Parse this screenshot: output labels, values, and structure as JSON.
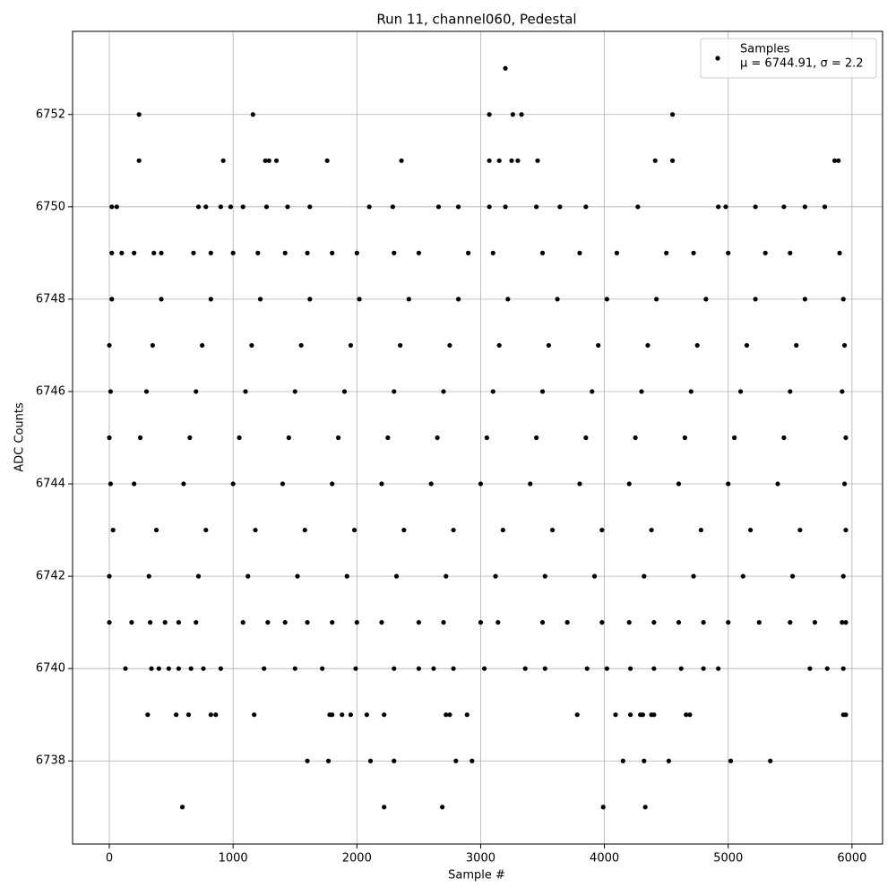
{
  "chart_data": {
    "type": "scatter",
    "title": "Run 11, channel060, Pedestal",
    "xlabel": "Sample #",
    "ylabel": "ADC Counts",
    "xlim": [
      -297,
      6247
    ],
    "ylim": [
      6736.2,
      6753.8
    ],
    "xticks": [
      0,
      1000,
      2000,
      3000,
      4000,
      5000,
      6000
    ],
    "yticks": [
      6738,
      6740,
      6742,
      6744,
      6746,
      6748,
      6750,
      6752
    ],
    "grid": true,
    "legend": "upper right",
    "legend_stats": "μ = 6744.91, σ = 2.2",
    "series": [
      {
        "name": "Samples",
        "color": "#000000",
        "x": [
          3200,
          240,
          1160,
          3070,
          3260,
          3330,
          4550,
          240,
          920,
          1260,
          1290,
          1350,
          1760,
          2360,
          3070,
          3150,
          3250,
          3300,
          3460,
          4410,
          4550,
          5860,
          5890,
          20,
          60,
          720,
          780,
          900,
          980,
          1080,
          1270,
          1440,
          1620,
          2100,
          2290,
          2660,
          2820,
          3070,
          3200,
          3450,
          3640,
          3850,
          4270,
          4920,
          4980,
          5220,
          5450,
          5620,
          5780,
          20,
          100,
          200,
          360,
          420,
          680,
          820,
          1000,
          1200,
          1420,
          1600,
          1800,
          2000,
          2300,
          2500,
          2900,
          3100,
          3500,
          3800,
          4100,
          4500,
          4720,
          5000,
          5300,
          5500,
          5900,
          20,
          420,
          820,
          1220,
          1620,
          2020,
          2420,
          2820,
          3220,
          3620,
          4020,
          4420,
          4820,
          5220,
          5620,
          5930,
          0,
          350,
          750,
          1150,
          1550,
          1950,
          2350,
          2750,
          3150,
          3550,
          3950,
          4350,
          4750,
          5150,
          5550,
          5940,
          10,
          300,
          700,
          1100,
          1500,
          1900,
          2300,
          2700,
          3100,
          3500,
          3900,
          4300,
          4700,
          5100,
          5500,
          5920,
          0,
          250,
          650,
          1050,
          1450,
          1850,
          2250,
          2650,
          3050,
          3450,
          3850,
          4250,
          4650,
          5050,
          5450,
          5950,
          10,
          200,
          600,
          1000,
          1400,
          1800,
          2200,
          2600,
          3000,
          3400,
          3800,
          4200,
          4600,
          5000,
          5400,
          5940,
          30,
          380,
          780,
          1180,
          1580,
          1980,
          2380,
          2780,
          3180,
          3580,
          3980,
          4380,
          4780,
          5180,
          5580,
          5950,
          0,
          320,
          720,
          1120,
          1520,
          1920,
          2320,
          2720,
          3120,
          3520,
          3920,
          4320,
          4720,
          5120,
          5520,
          5930,
          0,
          180,
          330,
          450,
          560,
          700,
          1080,
          1280,
          1420,
          1600,
          1800,
          2000,
          2200,
          2500,
          2700,
          3000,
          3140,
          3500,
          3700,
          3980,
          4200,
          4400,
          4600,
          4800,
          5000,
          5250,
          5500,
          5700,
          5920,
          5950,
          130,
          340,
          400,
          480,
          560,
          660,
          760,
          900,
          1250,
          1500,
          1720,
          1990,
          2300,
          2500,
          2620,
          2780,
          3030,
          3360,
          3520,
          3860,
          4020,
          4210,
          4400,
          4620,
          4800,
          4920,
          5660,
          5800,
          5930,
          310,
          540,
          640,
          820,
          860,
          1170,
          1780,
          1800,
          1880,
          1950,
          2080,
          2220,
          2720,
          2750,
          2890,
          3780,
          4090,
          4210,
          4290,
          4310,
          4380,
          4400,
          4660,
          4690,
          5930,
          5950,
          1600,
          1770,
          2110,
          2300,
          2800,
          2930,
          4150,
          4320,
          4520,
          5020,
          5340,
          590,
          2220,
          2690,
          3990,
          4330
        ],
        "values": [
          6753,
          6752,
          6752,
          6752,
          6752,
          6752,
          6752,
          6751,
          6751,
          6751,
          6751,
          6751,
          6751,
          6751,
          6751,
          6751,
          6751,
          6751,
          6751,
          6751,
          6751,
          6751,
          6751,
          6750,
          6750,
          6750,
          6750,
          6750,
          6750,
          6750,
          6750,
          6750,
          6750,
          6750,
          6750,
          6750,
          6750,
          6750,
          6750,
          6750,
          6750,
          6750,
          6750,
          6750,
          6750,
          6750,
          6750,
          6750,
          6750,
          6749,
          6749,
          6749,
          6749,
          6749,
          6749,
          6749,
          6749,
          6749,
          6749,
          6749,
          6749,
          6749,
          6749,
          6749,
          6749,
          6749,
          6749,
          6749,
          6749,
          6749,
          6749,
          6749,
          6749,
          6749,
          6749,
          6748,
          6748,
          6748,
          6748,
          6748,
          6748,
          6748,
          6748,
          6748,
          6748,
          6748,
          6748,
          6748,
          6748,
          6748,
          6748,
          6747,
          6747,
          6747,
          6747,
          6747,
          6747,
          6747,
          6747,
          6747,
          6747,
          6747,
          6747,
          6747,
          6747,
          6747,
          6747,
          6746,
          6746,
          6746,
          6746,
          6746,
          6746,
          6746,
          6746,
          6746,
          6746,
          6746,
          6746,
          6746,
          6746,
          6746,
          6746,
          6745,
          6745,
          6745,
          6745,
          6745,
          6745,
          6745,
          6745,
          6745,
          6745,
          6745,
          6745,
          6745,
          6745,
          6745,
          6745,
          6744,
          6744,
          6744,
          6744,
          6744,
          6744,
          6744,
          6744,
          6744,
          6744,
          6744,
          6744,
          6744,
          6744,
          6744,
          6744,
          6743,
          6743,
          6743,
          6743,
          6743,
          6743,
          6743,
          6743,
          6743,
          6743,
          6743,
          6743,
          6743,
          6743,
          6743,
          6743,
          6742,
          6742,
          6742,
          6742,
          6742,
          6742,
          6742,
          6742,
          6742,
          6742,
          6742,
          6742,
          6742,
          6742,
          6742,
          6742,
          6741,
          6741,
          6741,
          6741,
          6741,
          6741,
          6741,
          6741,
          6741,
          6741,
          6741,
          6741,
          6741,
          6741,
          6741,
          6741,
          6741,
          6741,
          6741,
          6741,
          6741,
          6741,
          6741,
          6741,
          6741,
          6741,
          6741,
          6741,
          6741,
          6741,
          6740,
          6740,
          6740,
          6740,
          6740,
          6740,
          6740,
          6740,
          6740,
          6740,
          6740,
          6740,
          6740,
          6740,
          6740,
          6740,
          6740,
          6740,
          6740,
          6740,
          6740,
          6740,
          6740,
          6740,
          6740,
          6740,
          6740,
          6740,
          6740,
          6739,
          6739,
          6739,
          6739,
          6739,
          6739,
          6739,
          6739,
          6739,
          6739,
          6739,
          6739,
          6739,
          6739,
          6739,
          6739,
          6739,
          6739,
          6739,
          6739,
          6739,
          6739,
          6739,
          6739,
          6739,
          6739,
          6738,
          6738,
          6738,
          6738,
          6738,
          6738,
          6738,
          6738,
          6738,
          6738,
          6738,
          6737,
          6737,
          6737,
          6737,
          6737
        ]
      }
    ]
  }
}
